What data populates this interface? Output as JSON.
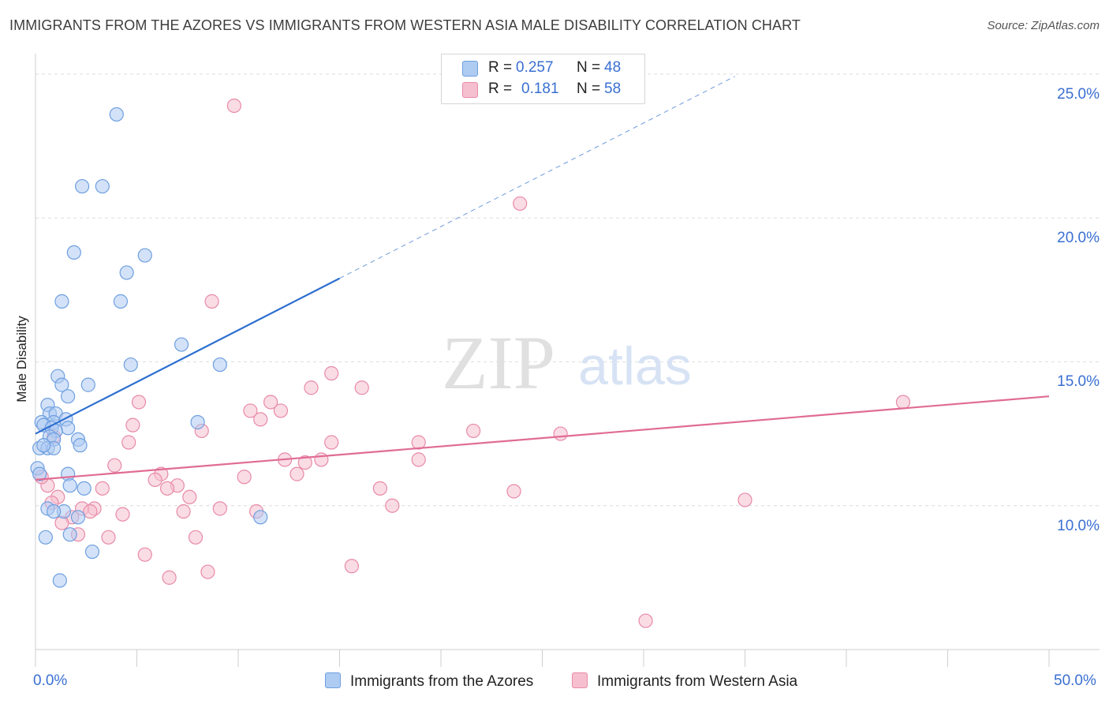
{
  "title": "IMMIGRANTS FROM THE AZORES VS IMMIGRANTS FROM WESTERN ASIA MALE DISABILITY CORRELATION CHART",
  "source": "Source: ZipAtlas.com",
  "watermark": {
    "zip": "ZIP",
    "atlas": "atlas"
  },
  "legend": {
    "series1": {
      "r_label": "R =",
      "r_value": "0.257",
      "n_label": "N =",
      "n_value": "48"
    },
    "series2": {
      "r_label": "R =",
      "r_value": "0.181",
      "n_label": "N =",
      "n_value": "58"
    }
  },
  "colors": {
    "blue_fill": "#aecbf2",
    "blue_stroke": "#6e9fe0",
    "blue_line": "#2e6fd0",
    "pink_fill": "#f6bfd0",
    "pink_stroke": "#e88aa8",
    "pink_line": "#e06c95",
    "grid": "#dcdcdc",
    "axis_text": "#3a6fd1"
  },
  "chart_data": {
    "type": "scatter",
    "title": "IMMIGRANTS FROM THE AZORES VS IMMIGRANTS FROM WESTERN ASIA MALE DISABILITY CORRELATION CHART",
    "xlabel": "",
    "ylabel": "Male Disability",
    "xlim": [
      0,
      50
    ],
    "ylim": [
      5,
      25.6
    ],
    "x_tick_labels": [
      "0.0%",
      "50.0%"
    ],
    "y_ticks": [
      10,
      15,
      20,
      25
    ],
    "y_tick_labels": [
      "10.0%",
      "15.0%",
      "20.0%",
      "25.0%"
    ],
    "series": [
      {
        "name": "Immigrants from the Azores",
        "r": 0.257,
        "n": 48,
        "trend": {
          "x0": 0,
          "y0": 12.5,
          "x1": 15,
          "y1": 17.9,
          "dash_x1": 34.5
        },
        "points": [
          {
            "x": 4.0,
            "y": 23.6
          },
          {
            "x": 2.3,
            "y": 21.1
          },
          {
            "x": 3.3,
            "y": 21.1
          },
          {
            "x": 1.9,
            "y": 18.8
          },
          {
            "x": 5.4,
            "y": 18.7
          },
          {
            "x": 4.5,
            "y": 18.1
          },
          {
            "x": 1.3,
            "y": 17.1
          },
          {
            "x": 4.2,
            "y": 17.1
          },
          {
            "x": 7.2,
            "y": 15.6
          },
          {
            "x": 4.7,
            "y": 14.9
          },
          {
            "x": 9.1,
            "y": 14.9
          },
          {
            "x": 1.1,
            "y": 14.5
          },
          {
            "x": 1.3,
            "y": 14.2
          },
          {
            "x": 2.6,
            "y": 14.2
          },
          {
            "x": 1.6,
            "y": 13.8
          },
          {
            "x": 0.6,
            "y": 13.5
          },
          {
            "x": 0.7,
            "y": 13.2
          },
          {
            "x": 1.0,
            "y": 13.2
          },
          {
            "x": 0.3,
            "y": 12.9
          },
          {
            "x": 0.9,
            "y": 12.9
          },
          {
            "x": 1.5,
            "y": 13.0
          },
          {
            "x": 8.0,
            "y": 12.9
          },
          {
            "x": 0.4,
            "y": 12.8
          },
          {
            "x": 0.8,
            "y": 12.7
          },
          {
            "x": 1.6,
            "y": 12.7
          },
          {
            "x": 1.0,
            "y": 12.6
          },
          {
            "x": 0.7,
            "y": 12.4
          },
          {
            "x": 0.9,
            "y": 12.3
          },
          {
            "x": 2.1,
            "y": 12.3
          },
          {
            "x": 2.2,
            "y": 12.1
          },
          {
            "x": 0.2,
            "y": 12.0
          },
          {
            "x": 0.6,
            "y": 12.0
          },
          {
            "x": 0.9,
            "y": 12.0
          },
          {
            "x": 0.4,
            "y": 12.1
          },
          {
            "x": 0.1,
            "y": 11.3
          },
          {
            "x": 0.2,
            "y": 11.1
          },
          {
            "x": 1.6,
            "y": 11.1
          },
          {
            "x": 1.7,
            "y": 10.7
          },
          {
            "x": 2.4,
            "y": 10.6
          },
          {
            "x": 0.6,
            "y": 9.9
          },
          {
            "x": 1.4,
            "y": 9.8
          },
          {
            "x": 2.1,
            "y": 9.6
          },
          {
            "x": 11.1,
            "y": 9.6
          },
          {
            "x": 0.5,
            "y": 8.9
          },
          {
            "x": 1.7,
            "y": 9.0
          },
          {
            "x": 2.8,
            "y": 8.4
          },
          {
            "x": 1.2,
            "y": 7.4
          },
          {
            "x": 0.9,
            "y": 9.8
          }
        ]
      },
      {
        "name": "Immigrants from Western Asia",
        "r": 0.181,
        "n": 58,
        "trend": {
          "x0": 0,
          "y0": 10.9,
          "x1": 50,
          "y1": 13.8
        },
        "points": [
          {
            "x": 9.8,
            "y": 23.9
          },
          {
            "x": 23.9,
            "y": 20.5
          },
          {
            "x": 8.7,
            "y": 17.1
          },
          {
            "x": 14.6,
            "y": 14.6
          },
          {
            "x": 16.1,
            "y": 14.1
          },
          {
            "x": 13.6,
            "y": 14.1
          },
          {
            "x": 5.1,
            "y": 13.6
          },
          {
            "x": 11.6,
            "y": 13.6
          },
          {
            "x": 10.6,
            "y": 13.3
          },
          {
            "x": 12.1,
            "y": 13.3
          },
          {
            "x": 11.1,
            "y": 13.0
          },
          {
            "x": 4.8,
            "y": 12.8
          },
          {
            "x": 8.2,
            "y": 12.6
          },
          {
            "x": 21.6,
            "y": 12.6
          },
          {
            "x": 25.9,
            "y": 12.5
          },
          {
            "x": 4.6,
            "y": 12.2
          },
          {
            "x": 14.6,
            "y": 12.2
          },
          {
            "x": 18.9,
            "y": 12.2
          },
          {
            "x": 42.8,
            "y": 13.6
          },
          {
            "x": 12.3,
            "y": 11.6
          },
          {
            "x": 13.3,
            "y": 11.5
          },
          {
            "x": 14.1,
            "y": 11.6
          },
          {
            "x": 18.9,
            "y": 11.6
          },
          {
            "x": 3.9,
            "y": 11.4
          },
          {
            "x": 12.9,
            "y": 11.1
          },
          {
            "x": 6.2,
            "y": 11.1
          },
          {
            "x": 10.3,
            "y": 11.0
          },
          {
            "x": 5.9,
            "y": 10.9
          },
          {
            "x": 7.0,
            "y": 10.7
          },
          {
            "x": 6.5,
            "y": 10.6
          },
          {
            "x": 3.3,
            "y": 10.6
          },
          {
            "x": 17.0,
            "y": 10.6
          },
          {
            "x": 23.6,
            "y": 10.5
          },
          {
            "x": 1.1,
            "y": 10.3
          },
          {
            "x": 7.6,
            "y": 10.3
          },
          {
            "x": 35.0,
            "y": 10.2
          },
          {
            "x": 0.8,
            "y": 10.1
          },
          {
            "x": 17.6,
            "y": 10.0
          },
          {
            "x": 2.9,
            "y": 9.9
          },
          {
            "x": 2.3,
            "y": 9.9
          },
          {
            "x": 9.1,
            "y": 9.9
          },
          {
            "x": 7.3,
            "y": 9.8
          },
          {
            "x": 10.9,
            "y": 9.8
          },
          {
            "x": 4.3,
            "y": 9.7
          },
          {
            "x": 1.8,
            "y": 9.6
          },
          {
            "x": 2.7,
            "y": 9.8
          },
          {
            "x": 1.3,
            "y": 9.4
          },
          {
            "x": 2.1,
            "y": 9.0
          },
          {
            "x": 3.6,
            "y": 8.9
          },
          {
            "x": 7.9,
            "y": 8.9
          },
          {
            "x": 5.4,
            "y": 8.3
          },
          {
            "x": 15.6,
            "y": 7.9
          },
          {
            "x": 8.5,
            "y": 7.7
          },
          {
            "x": 6.6,
            "y": 7.5
          },
          {
            "x": 30.1,
            "y": 6.0
          },
          {
            "x": 0.6,
            "y": 10.7
          },
          {
            "x": 0.9,
            "y": 12.4
          },
          {
            "x": 0.3,
            "y": 11.0
          }
        ]
      }
    ]
  }
}
